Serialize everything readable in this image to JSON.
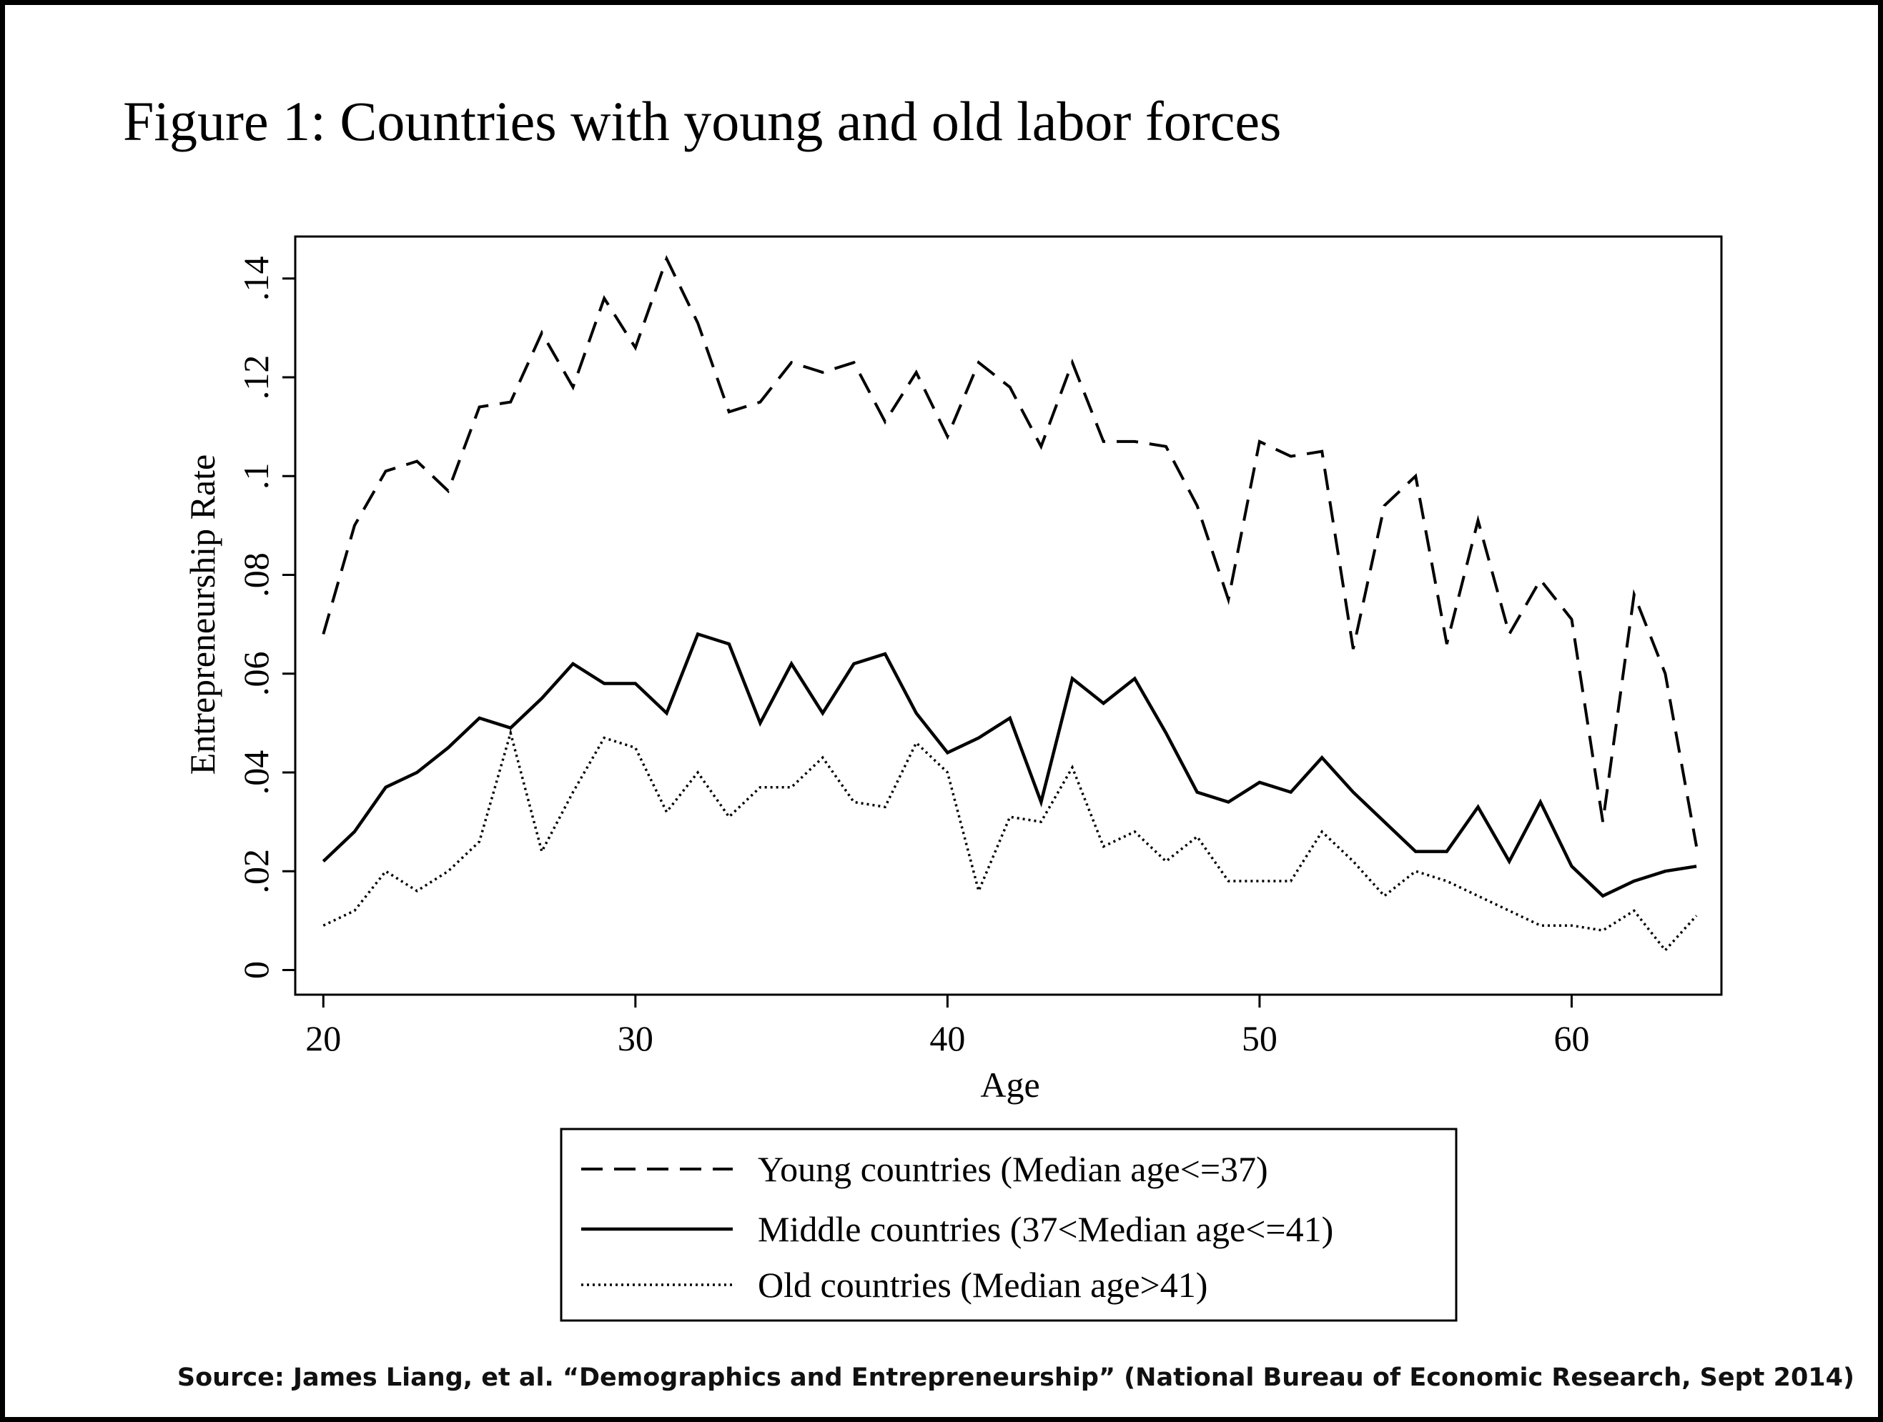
{
  "source": "Source:  James Liang, et al. “Demographics and Entrepreneurship” (National Bureau of Economic Research, Sept 2014)",
  "chart_data": {
    "type": "line",
    "title": "Figure 1: Countries with young and old labor forces",
    "xlabel": "Age",
    "ylabel": "Entrepreneurship Rate",
    "xlim": [
      19.1,
      64.8
    ],
    "ylim": [
      -0.005,
      0.1485
    ],
    "xticks": [
      20,
      30,
      40,
      50,
      60
    ],
    "xtick_labels": [
      "20",
      "30",
      "40",
      "50",
      "60"
    ],
    "yticks": [
      0,
      0.02,
      0.04,
      0.06,
      0.08,
      0.1,
      0.12,
      0.14
    ],
    "ytick_labels": [
      "0",
      ".02",
      ".04",
      ".06",
      ".08",
      ".1",
      ".12",
      ".14"
    ],
    "grid": false,
    "legend_position": "bottom",
    "x": [
      20,
      21,
      22,
      23,
      24,
      25,
      26,
      27,
      28,
      29,
      30,
      31,
      32,
      33,
      34,
      35,
      36,
      37,
      38,
      39,
      40,
      41,
      42,
      43,
      44,
      45,
      46,
      47,
      48,
      49,
      50,
      51,
      52,
      53,
      54,
      55,
      56,
      57,
      58,
      59,
      60,
      61,
      62,
      63,
      64
    ],
    "series": [
      {
        "name": "Young countries (Median age<=37)",
        "dash": "dashed",
        "values": [
          0.068,
          0.09,
          0.101,
          0.103,
          0.097,
          0.114,
          0.115,
          0.129,
          0.118,
          0.136,
          0.126,
          0.144,
          0.131,
          0.113,
          0.115,
          0.123,
          0.121,
          0.123,
          0.111,
          0.121,
          0.108,
          0.123,
          0.118,
          0.106,
          0.123,
          0.107,
          0.107,
          0.106,
          0.094,
          0.075,
          0.107,
          0.104,
          0.105,
          0.065,
          0.094,
          0.1,
          0.066,
          0.091,
          0.068,
          0.079,
          0.071,
          0.03,
          0.076,
          0.06,
          0.025
        ]
      },
      {
        "name": "Middle countries (37<Median age<=41)",
        "dash": "solid",
        "values": [
          0.022,
          0.028,
          0.037,
          0.04,
          0.045,
          0.051,
          0.049,
          0.055,
          0.062,
          0.058,
          0.058,
          0.052,
          0.068,
          0.066,
          0.05,
          0.062,
          0.052,
          0.062,
          0.064,
          0.052,
          0.044,
          0.047,
          0.051,
          0.034,
          0.059,
          0.054,
          0.059,
          0.048,
          0.036,
          0.034,
          0.038,
          0.036,
          0.043,
          0.036,
          0.03,
          0.024,
          0.024,
          0.033,
          0.022,
          0.034,
          0.021,
          0.015,
          0.018,
          0.02,
          0.021
        ]
      },
      {
        "name": "Old countries (Median age>41)",
        "dash": "dotted",
        "values": [
          0.009,
          0.012,
          0.02,
          0.016,
          0.02,
          0.026,
          0.048,
          0.024,
          0.036,
          0.047,
          0.045,
          0.032,
          0.04,
          0.031,
          0.037,
          0.037,
          0.043,
          0.034,
          0.033,
          0.046,
          0.04,
          0.016,
          0.031,
          0.03,
          0.041,
          0.025,
          0.028,
          0.022,
          0.027,
          0.018,
          0.018,
          0.018,
          0.028,
          0.022,
          0.015,
          0.02,
          0.018,
          0.015,
          0.012,
          0.009,
          0.009,
          0.008,
          0.012,
          0.004,
          0.011
        ]
      }
    ]
  }
}
